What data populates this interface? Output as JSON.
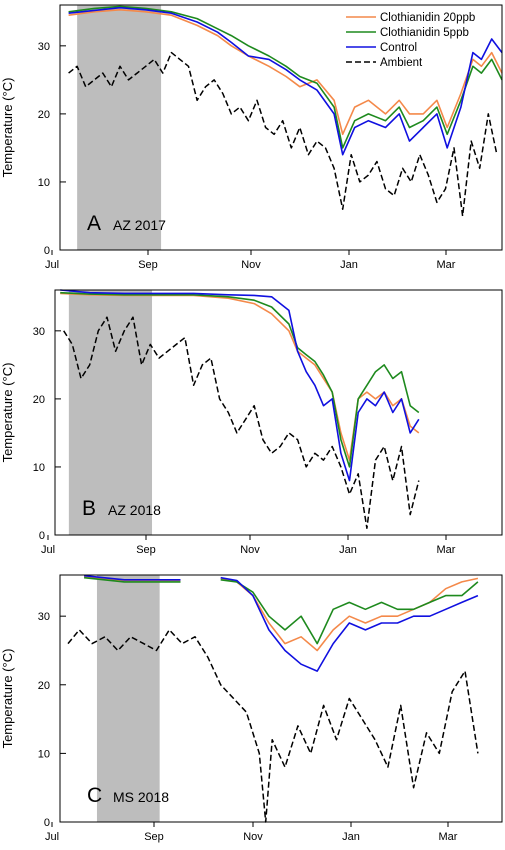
{
  "colors": {
    "clothianidin_20ppb": "#f4894a",
    "clothianidin_5ppb": "#1e8a1e",
    "control": "#1010e0",
    "ambient": "#000000",
    "shade": "#bdbdbd"
  },
  "legend": [
    {
      "key": "clothianidin_20ppb",
      "label": "Clothianidin 20ppb",
      "style": "solid"
    },
    {
      "key": "clothianidin_5ppb",
      "label": "Clothianidin 5ppb",
      "style": "solid"
    },
    {
      "key": "control",
      "label": "Control",
      "style": "solid"
    },
    {
      "key": "ambient",
      "label": "Ambient",
      "style": "dashed"
    }
  ],
  "chart_data": [
    {
      "type": "line",
      "panel_letter": "A",
      "panel_tag": "AZ 2017",
      "ylabel": "Temperature (°C)",
      "ylim": [
        0,
        36
      ],
      "yticks": [
        0,
        10,
        20,
        30
      ],
      "x_tick_labels": [
        "Jul",
        "Sep",
        "Nov",
        "Jan",
        "Mar"
      ],
      "x_unit": "days since Jul 1, 2017",
      "xlim": [
        0,
        258
      ],
      "shaded_range": [
        10,
        59
      ],
      "series": [
        {
          "name": "Clothianidin 20ppb",
          "key": "clothianidin_20ppb",
          "x": [
            5,
            20,
            35,
            50,
            65,
            80,
            92,
            100,
            110,
            122,
            132,
            140,
            150,
            160,
            165,
            172,
            180,
            190,
            198,
            204,
            212,
            220,
            226,
            234,
            241,
            246,
            252,
            258
          ],
          "y": [
            34.5,
            35,
            35.3,
            35,
            34.5,
            33,
            31.5,
            30,
            28.5,
            27,
            25.5,
            24,
            25,
            22,
            17,
            21,
            22,
            20,
            22,
            20,
            20,
            22,
            18,
            23,
            28,
            27,
            29,
            26
          ]
        },
        {
          "name": "Clothianidin 5ppb",
          "key": "clothianidin_5ppb",
          "x": [
            5,
            20,
            35,
            50,
            65,
            80,
            92,
            100,
            110,
            122,
            132,
            140,
            150,
            160,
            165,
            172,
            180,
            190,
            198,
            204,
            212,
            220,
            226,
            234,
            241,
            246,
            252,
            258
          ],
          "y": [
            35,
            35.5,
            35.8,
            35.5,
            35,
            34,
            32.5,
            31.5,
            30,
            28.5,
            27,
            25.5,
            24.5,
            21,
            15,
            19,
            20,
            19,
            21,
            18,
            19,
            21,
            17,
            22,
            27,
            26,
            28,
            25
          ]
        },
        {
          "name": "Control",
          "key": "control",
          "x": [
            5,
            20,
            35,
            50,
            65,
            80,
            92,
            100,
            110,
            122,
            132,
            140,
            150,
            160,
            165,
            172,
            180,
            190,
            198,
            204,
            212,
            220,
            226,
            234,
            241,
            246,
            252,
            258
          ],
          "y": [
            34.8,
            35.2,
            35.6,
            35.3,
            34.8,
            33.5,
            32,
            30.5,
            28.5,
            28,
            26.5,
            25,
            23.5,
            20,
            14,
            18,
            19,
            18,
            20,
            16,
            18,
            20,
            15,
            21,
            29,
            28,
            31,
            29
          ]
        },
        {
          "name": "Ambient",
          "key": "ambient",
          "x": [
            5,
            10,
            15,
            20,
            25,
            30,
            35,
            40,
            45,
            50,
            55,
            60,
            65,
            70,
            75,
            80,
            85,
            90,
            95,
            100,
            105,
            110,
            115,
            120,
            125,
            130,
            135,
            140,
            145,
            150,
            155,
            160,
            165,
            170,
            175,
            180,
            185,
            190,
            195,
            200,
            205,
            210,
            215,
            220,
            225,
            230,
            235,
            240,
            245,
            250,
            255
          ],
          "y": [
            26,
            27,
            24,
            25,
            26,
            24,
            27,
            25,
            26,
            27,
            28,
            26,
            29,
            28,
            27,
            22,
            24,
            25,
            23,
            20,
            21,
            19,
            22,
            18,
            17,
            19,
            15,
            18,
            14,
            16,
            15,
            12,
            6,
            14,
            10,
            11,
            13,
            9,
            8,
            12,
            10,
            14,
            11,
            7,
            9,
            15,
            5,
            16,
            12,
            20,
            14
          ]
        }
      ]
    },
    {
      "type": "line",
      "panel_letter": "B",
      "panel_tag": "AZ 2018",
      "ylabel": "Temperature (°C)",
      "ylim": [
        0,
        36
      ],
      "yticks": [
        0,
        10,
        20,
        30
      ],
      "x_tick_labels": [
        "Jul",
        "Sep",
        "Nov",
        "Jan",
        "Mar"
      ],
      "x_unit": "days since Jul 1, 2018",
      "xlim": [
        0,
        258
      ],
      "shaded_range": [
        8,
        56
      ],
      "series": [
        {
          "name": "Clothianidin 20ppb",
          "key": "clothianidin_20ppb",
          "x": [
            3,
            20,
            40,
            60,
            80,
            100,
            115,
            125,
            135,
            140,
            145,
            150,
            155,
            160,
            165,
            170,
            175,
            180,
            185,
            190,
            195,
            200,
            205,
            210
          ],
          "y": [
            35.5,
            35.3,
            35.2,
            35.2,
            35.2,
            34.8,
            34,
            32.5,
            30,
            27,
            26,
            25,
            23,
            21,
            15,
            11,
            20,
            21,
            20,
            21,
            19,
            20,
            16,
            15
          ]
        },
        {
          "name": "Clothianidin 5ppb",
          "key": "clothianidin_5ppb",
          "x": [
            3,
            20,
            40,
            60,
            80,
            100,
            115,
            125,
            135,
            140,
            145,
            150,
            155,
            160,
            165,
            170,
            175,
            180,
            185,
            190,
            195,
            200,
            205,
            210
          ],
          "y": [
            35.6,
            35.4,
            35.3,
            35.3,
            35.3,
            35,
            34.5,
            33.5,
            31,
            27.5,
            26.5,
            25.5,
            23.5,
            21,
            14,
            10,
            20,
            22,
            24,
            25,
            23,
            24,
            19,
            18
          ]
        },
        {
          "name": "Control",
          "key": "control",
          "x": [
            3,
            20,
            40,
            60,
            80,
            100,
            115,
            125,
            135,
            140,
            145,
            150,
            155,
            160,
            165,
            170,
            175,
            180,
            185,
            190,
            195,
            200,
            205,
            210
          ],
          "y": [
            36,
            35.6,
            35.5,
            35.5,
            35.5,
            35.3,
            35.2,
            35,
            33,
            27,
            24,
            22,
            19,
            20,
            12,
            8,
            18,
            20,
            19,
            21,
            18,
            20,
            15,
            17
          ]
        },
        {
          "name": "Ambient",
          "key": "ambient",
          "x": [
            5,
            10,
            15,
            20,
            25,
            30,
            35,
            40,
            45,
            50,
            55,
            60,
            65,
            70,
            75,
            80,
            85,
            90,
            95,
            100,
            105,
            110,
            115,
            120,
            125,
            130,
            135,
            140,
            145,
            150,
            155,
            160,
            165,
            170,
            175,
            180,
            185,
            190,
            195,
            200,
            205,
            210
          ],
          "y": [
            30,
            28,
            23,
            25,
            30,
            32,
            27,
            30,
            32,
            25,
            28,
            26,
            27,
            28,
            29,
            22,
            25,
            26,
            20,
            18,
            15,
            17,
            19,
            14,
            12,
            13,
            15,
            14,
            10,
            12,
            11,
            13,
            10,
            6,
            9,
            1,
            11,
            13,
            8,
            13,
            3,
            8
          ]
        }
      ]
    },
    {
      "type": "line",
      "panel_letter": "C",
      "panel_tag": "MS 2018",
      "ylabel": "Temperature (°C)",
      "ylim": [
        0,
        36
      ],
      "yticks": [
        0,
        10,
        20,
        30
      ],
      "x_tick_labels": [
        "Jul",
        "Sep",
        "Nov",
        "Jan",
        "Mar"
      ],
      "x_unit": "days since Jul 1, 2018",
      "xlim": [
        0,
        275
      ],
      "shaded_range": [
        23,
        62
      ],
      "series": [
        {
          "name": "Clothianidin 20ppb",
          "key": "clothianidin_20ppb",
          "x": [
            15,
            40,
            75,
            90,
            100,
            110,
            120,
            130,
            140,
            150,
            160,
            170,
            180,
            190,
            200,
            210,
            220,
            230,
            240,
            250,
            260
          ],
          "y": [
            35.8,
            35.2,
            35.2,
            null,
            35.5,
            35,
            33,
            29,
            26,
            27,
            25,
            28,
            30,
            29,
            30,
            30,
            31,
            32,
            34,
            35,
            35.5
          ]
        },
        {
          "name": "Clothianidin 5ppb",
          "key": "clothianidin_5ppb",
          "x": [
            15,
            40,
            75,
            90,
            100,
            110,
            120,
            130,
            140,
            150,
            160,
            170,
            180,
            190,
            200,
            210,
            220,
            230,
            240,
            250,
            260
          ],
          "y": [
            35.6,
            35,
            35,
            null,
            35.3,
            35,
            33.5,
            30,
            28,
            30,
            26,
            31,
            32,
            31,
            32,
            31,
            31,
            32,
            33,
            33,
            35
          ]
        },
        {
          "name": "Control",
          "key": "control",
          "x": [
            15,
            40,
            75,
            90,
            100,
            110,
            120,
            130,
            140,
            150,
            160,
            170,
            180,
            190,
            200,
            210,
            220,
            230,
            240,
            250,
            260
          ],
          "y": [
            35.9,
            35.3,
            35.3,
            null,
            35.6,
            35.2,
            33,
            28,
            25,
            23,
            22,
            26,
            29,
            28,
            29,
            29,
            30,
            30,
            31,
            32,
            33
          ]
        },
        {
          "name": "Ambient",
          "key": "ambient",
          "x": [
            5,
            12,
            20,
            28,
            36,
            44,
            52,
            60,
            68,
            76,
            84,
            92,
            100,
            108,
            116,
            124,
            128,
            132,
            140,
            148,
            156,
            164,
            172,
            180,
            188,
            196,
            204,
            212,
            220,
            228,
            236,
            244,
            252,
            260
          ],
          "y": [
            26,
            28,
            26,
            27,
            25,
            27,
            26,
            25,
            28,
            26,
            27,
            24,
            20,
            18,
            16,
            10,
            0,
            12,
            8,
            14,
            10,
            17,
            12,
            18,
            15,
            12,
            8,
            17,
            5,
            13,
            10,
            19,
            22,
            10
          ]
        }
      ]
    }
  ]
}
